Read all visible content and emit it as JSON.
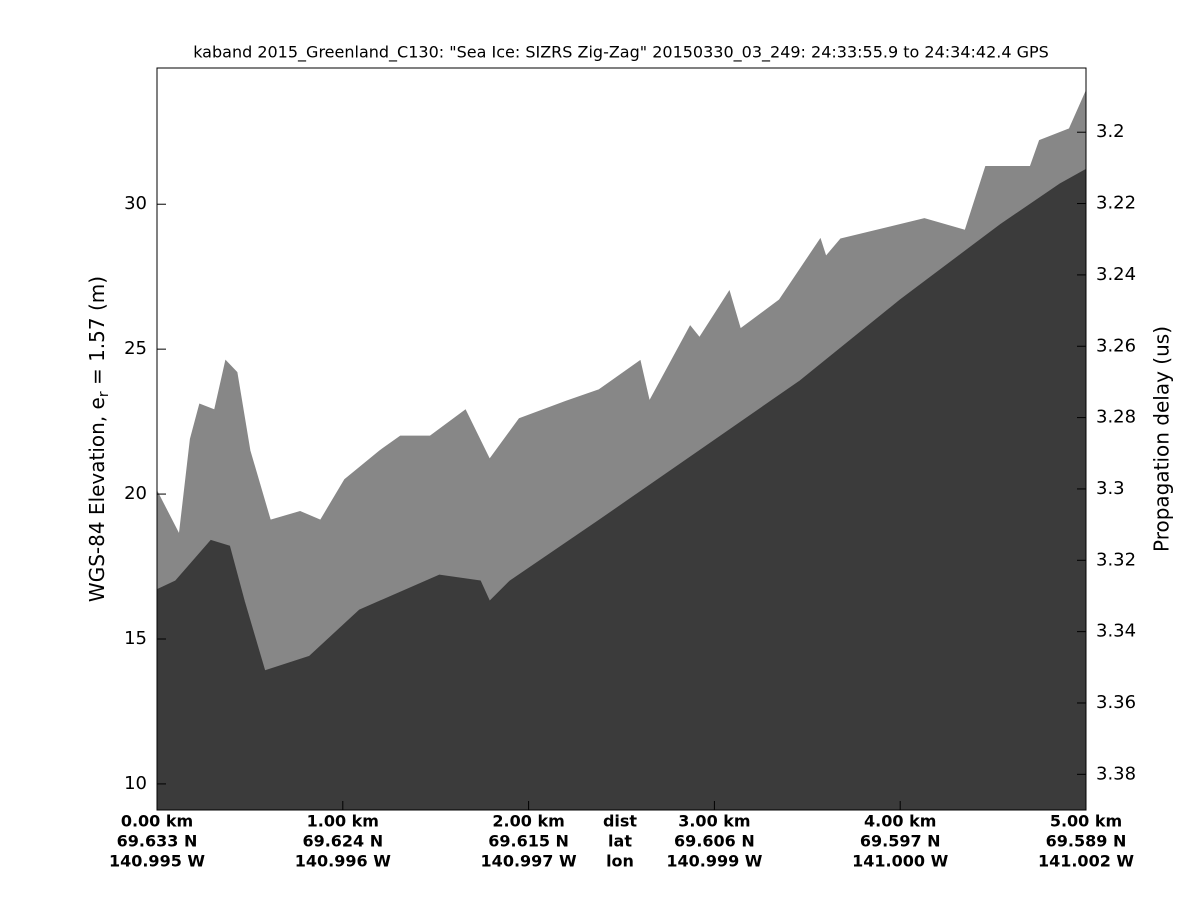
{
  "chart_data": {
    "type": "echogram",
    "title": "kaband 2015_Greenland_C130: \"Sea Ice: SIZRS Zig-Zag\"  20150330_03_249: 24:33:55.9 to 24:34:42.4 GPS",
    "ylabel": "WGS-84 Elevation, e",
    "ylabel_sub": "r",
    "ylabel_tail": " = 1.57 (m)",
    "y2label": "Propagation delay (us)",
    "xlim": [
      0,
      5
    ],
    "ylim": [
      9.1,
      34.7
    ],
    "y2lim": [
      3.182,
      3.39
    ],
    "xticks": [
      {
        "value": 0,
        "label": "0.00 km"
      },
      {
        "value": 1,
        "label": "1.00 km"
      },
      {
        "value": 2,
        "label": "2.00 km"
      },
      {
        "value": 3,
        "label": "3.00 km"
      },
      {
        "value": 4,
        "label": "4.00 km"
      },
      {
        "value": 5,
        "label": "5.00 km"
      }
    ],
    "lat_labels": [
      "69.633 N",
      "69.624 N",
      "69.615 N",
      "69.606 N",
      "69.597 N",
      "69.589 N"
    ],
    "lon_labels": [
      "140.995 W",
      "140.996 W",
      "140.997 W",
      "140.999 W",
      "141.000 W",
      "141.002 W"
    ],
    "row_labels": [
      "dist",
      "lat",
      "lon"
    ],
    "yticks": [
      10,
      15,
      20,
      25,
      30
    ],
    "y2ticks": [
      3.2,
      3.22,
      3.24,
      3.26,
      3.28,
      3.3,
      3.32,
      3.34,
      3.36,
      3.38
    ],
    "layers": [
      {
        "color": "#878787",
        "x": [
          0,
          0.12,
          0.18,
          0.23,
          0.31,
          0.37,
          0.43,
          0.5,
          0.61,
          0.77,
          0.88,
          1.01,
          1.2,
          1.31,
          1.47,
          1.66,
          1.79,
          1.95,
          2.2,
          2.38,
          2.6,
          2.65,
          2.87,
          2.92,
          3.08,
          3.14,
          3.35,
          3.57,
          3.6,
          3.68,
          4.13,
          4.35,
          4.46,
          4.7,
          4.75,
          4.91,
          5
        ],
        "values": [
          20.1,
          18.6,
          21.9,
          23.1,
          22.9,
          24.6,
          24.2,
          21.5,
          19.1,
          19.4,
          19.1,
          20.5,
          21.5,
          22.0,
          22.0,
          22.9,
          21.2,
          22.6,
          23.2,
          23.6,
          24.6,
          23.2,
          25.8,
          25.4,
          27.0,
          25.7,
          26.7,
          28.8,
          28.2,
          28.8,
          29.5,
          29.1,
          31.3,
          31.3,
          32.2,
          32.6,
          33.9
        ]
      },
      {
        "color": "#3b3b3b",
        "x": [
          0,
          0.1,
          0.29,
          0.39,
          0.47,
          0.58,
          0.82,
          1.09,
          1.52,
          1.74,
          1.79,
          1.9,
          2.38,
          2.92,
          3.46,
          4.0,
          4.54,
          4.86,
          5
        ],
        "values": [
          16.7,
          17.0,
          18.4,
          18.2,
          16.3,
          13.9,
          14.4,
          16.0,
          17.2,
          17.0,
          16.3,
          17.0,
          19.1,
          21.5,
          23.9,
          26.7,
          29.3,
          30.7,
          31.2
        ]
      }
    ]
  }
}
